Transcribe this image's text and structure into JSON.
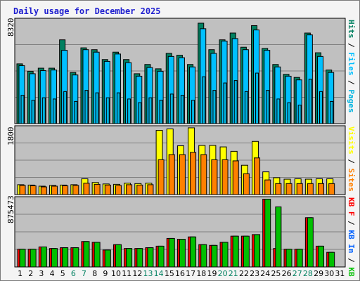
{
  "title": "Daily usage for December 2025",
  "colors": {
    "bg": "#f4f4f4",
    "panel": "#c0c0c0",
    "grid": "#808080",
    "hits": "#008060",
    "files": "#00c0ff",
    "pages": "#00b4e0",
    "visits": "#ffff00",
    "sites": "#ff8000",
    "kb_in": "#0060ff",
    "kb_out": "#00c000",
    "kb_f": "#ff0000",
    "title": "#2020d0",
    "weekend": "#008060",
    "weekday": "#000000"
  },
  "chart_data": [
    {
      "type": "bar",
      "panel": "hits-files-pages",
      "ymax_label": "8320",
      "ylim": [
        0,
        8320
      ],
      "right_label": {
        "hits": "Hits",
        "files": "Files",
        "pages": "Pages",
        "sep": " / "
      },
      "series": [
        {
          "name": "Hits",
          "values": [
            4850,
            4250,
            4500,
            4500,
            6800,
            4150,
            6150,
            6000,
            5200,
            5800,
            5200,
            4050,
            4800,
            4450,
            5700,
            5550,
            4800,
            8150,
            6000,
            6800,
            7350,
            6200,
            7950,
            6100,
            4800,
            4000,
            3750,
            7350,
            5750,
            4350,
            0
          ]
        },
        {
          "name": "Files",
          "values": [
            4700,
            4050,
            4300,
            4350,
            5950,
            3950,
            6000,
            5800,
            5050,
            5650,
            4950,
            3850,
            4550,
            4250,
            5450,
            5350,
            4600,
            7700,
            5700,
            6700,
            6900,
            6000,
            7600,
            5950,
            4600,
            3850,
            3550,
            7200,
            5450,
            4150,
            0
          ]
        },
        {
          "name": "Pages",
          "values": [
            2300,
            1900,
            2100,
            2000,
            2600,
            1800,
            2700,
            2500,
            2100,
            2500,
            2000,
            1700,
            2100,
            1900,
            2400,
            2300,
            1900,
            3800,
            2700,
            3300,
            3500,
            2600,
            4100,
            2700,
            2000,
            1700,
            1500,
            3600,
            2600,
            1800,
            0
          ]
        }
      ]
    },
    {
      "type": "bar",
      "panel": "visits-sites",
      "ymax_label": "1800",
      "ylim": [
        0,
        1800
      ],
      "right_label": {
        "visits": "Visits",
        "sites": "Sites",
        "sep": " / "
      },
      "series": [
        {
          "name": "Visits",
          "values": [
            270,
            260,
            230,
            250,
            260,
            270,
            430,
            330,
            290,
            280,
            310,
            300,
            310,
            1750,
            1790,
            1330,
            1820,
            1340,
            1340,
            1300,
            1180,
            800,
            1450,
            620,
            460,
            420,
            430,
            420,
            430,
            430,
            0
          ]
        },
        {
          "name": "Sites",
          "values": [
            250,
            240,
            210,
            230,
            240,
            250,
            310,
            280,
            260,
            250,
            270,
            260,
            270,
            950,
            1090,
            1090,
            1150,
            1090,
            950,
            950,
            920,
            570,
            1000,
            400,
            300,
            300,
            300,
            300,
            300,
            300,
            0
          ]
        }
      ]
    },
    {
      "type": "bar",
      "panel": "kbytes",
      "ymax_label": "875473",
      "ylim": [
        0,
        875473
      ],
      "right_label": {
        "kb_f": "KB F",
        "kb_in": "KB In",
        "kb_out": "KB Out",
        "sep": " / "
      },
      "series": [
        {
          "name": "KB F",
          "values": [
            230000,
            230000,
            260000,
            240000,
            250000,
            250000,
            330000,
            320000,
            220000,
            290000,
            240000,
            240000,
            250000,
            270000,
            370000,
            360000,
            390000,
            290000,
            280000,
            320000,
            400000,
            400000,
            420000,
            880000,
            240000,
            230000,
            230000,
            640000,
            270000,
            190000,
            0
          ]
        },
        {
          "name": "KB Out",
          "values": [
            230000,
            230000,
            260000,
            240000,
            250000,
            250000,
            330000,
            320000,
            220000,
            290000,
            240000,
            240000,
            250000,
            270000,
            370000,
            360000,
            390000,
            290000,
            280000,
            320000,
            400000,
            400000,
            420000,
            880000,
            780000,
            230000,
            230000,
            640000,
            270000,
            190000,
            0
          ]
        }
      ]
    }
  ],
  "days": [
    "1",
    "2",
    "3",
    "4",
    "5",
    "6",
    "7",
    "8",
    "9",
    "10",
    "11",
    "12",
    "13",
    "14",
    "15",
    "16",
    "17",
    "18",
    "19",
    "20",
    "21",
    "22",
    "23",
    "24",
    "25",
    "26",
    "27",
    "28",
    "29",
    "30",
    "31"
  ],
  "weekend_days": [
    "6",
    "7",
    "13",
    "14",
    "20",
    "21",
    "27",
    "28"
  ]
}
